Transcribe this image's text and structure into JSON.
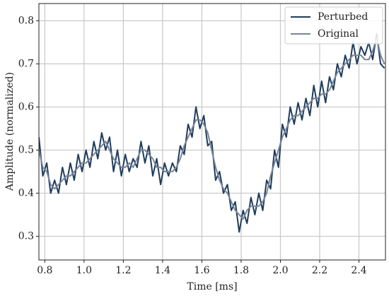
{
  "chart_data": {
    "type": "line",
    "xlabel": "Time [ms]",
    "ylabel": "Amplitude (normalized)",
    "x": [
      0.77,
      0.79,
      0.81,
      0.83,
      0.85,
      0.87,
      0.89,
      0.91,
      0.93,
      0.95,
      0.97,
      0.99,
      1.01,
      1.03,
      1.05,
      1.07,
      1.09,
      1.11,
      1.13,
      1.15,
      1.17,
      1.19,
      1.21,
      1.23,
      1.25,
      1.27,
      1.29,
      1.31,
      1.33,
      1.35,
      1.37,
      1.39,
      1.41,
      1.43,
      1.45,
      1.47,
      1.49,
      1.51,
      1.53,
      1.55,
      1.57,
      1.59,
      1.61,
      1.63,
      1.65,
      1.67,
      1.69,
      1.71,
      1.73,
      1.75,
      1.77,
      1.79,
      1.81,
      1.83,
      1.85,
      1.87,
      1.89,
      1.91,
      1.93,
      1.95,
      1.97,
      1.99,
      2.01,
      2.03,
      2.05,
      2.07,
      2.09,
      2.11,
      2.13,
      2.15,
      2.17,
      2.19,
      2.21,
      2.23,
      2.25,
      2.27,
      2.29,
      2.31,
      2.33,
      2.35,
      2.37,
      2.39,
      2.41,
      2.43,
      2.45,
      2.47,
      2.49,
      2.51,
      2.53
    ],
    "series": [
      {
        "name": "Perturbed",
        "color": "#1f3d5c",
        "width": 2,
        "values": [
          0.53,
          0.44,
          0.47,
          0.4,
          0.43,
          0.4,
          0.46,
          0.42,
          0.47,
          0.43,
          0.49,
          0.45,
          0.5,
          0.46,
          0.52,
          0.48,
          0.54,
          0.5,
          0.53,
          0.45,
          0.5,
          0.44,
          0.49,
          0.45,
          0.48,
          0.46,
          0.52,
          0.47,
          0.51,
          0.44,
          0.48,
          0.42,
          0.47,
          0.44,
          0.47,
          0.45,
          0.51,
          0.49,
          0.56,
          0.53,
          0.6,
          0.55,
          0.58,
          0.51,
          0.52,
          0.43,
          0.45,
          0.4,
          0.42,
          0.36,
          0.38,
          0.31,
          0.36,
          0.33,
          0.39,
          0.35,
          0.4,
          0.36,
          0.43,
          0.41,
          0.5,
          0.46,
          0.56,
          0.53,
          0.6,
          0.56,
          0.61,
          0.57,
          0.62,
          0.58,
          0.65,
          0.6,
          0.66,
          0.61,
          0.67,
          0.64,
          0.7,
          0.67,
          0.72,
          0.69,
          0.75,
          0.7,
          0.74,
          0.72,
          0.75,
          0.71,
          0.77,
          0.7,
          0.69
        ]
      },
      {
        "name": "Original",
        "color": "#7a8499",
        "width": 2,
        "values": [
          0.5,
          0.46,
          0.45,
          0.42,
          0.41,
          0.42,
          0.43,
          0.44,
          0.44,
          0.45,
          0.46,
          0.47,
          0.47,
          0.48,
          0.49,
          0.5,
          0.51,
          0.52,
          0.5,
          0.48,
          0.47,
          0.46,
          0.46,
          0.47,
          0.46,
          0.48,
          0.5,
          0.5,
          0.49,
          0.48,
          0.46,
          0.46,
          0.45,
          0.45,
          0.45,
          0.46,
          0.48,
          0.51,
          0.53,
          0.55,
          0.57,
          0.57,
          0.56,
          0.54,
          0.5,
          0.46,
          0.43,
          0.41,
          0.4,
          0.38,
          0.36,
          0.35,
          0.34,
          0.36,
          0.37,
          0.37,
          0.37,
          0.38,
          0.4,
          0.44,
          0.47,
          0.5,
          0.53,
          0.55,
          0.57,
          0.58,
          0.58,
          0.59,
          0.6,
          0.61,
          0.62,
          0.62,
          0.63,
          0.63,
          0.64,
          0.66,
          0.68,
          0.69,
          0.7,
          0.71,
          0.72,
          0.72,
          0.72,
          0.71,
          0.71,
          0.73,
          0.76,
          0.72,
          0.7
        ]
      }
    ],
    "xlim": [
      0.77,
      2.535
    ],
    "ylim": [
      0.245,
      0.84
    ],
    "xticks": [
      0.8,
      {
        "value": 1,
        "label": "1.0"
      },
      1.2,
      1.4,
      1.6,
      1.8,
      {
        "value": 2,
        "label": "2.0"
      },
      2.2,
      2.4
    ],
    "yticks": [
      0.3,
      0.4,
      0.5,
      0.6,
      0.7,
      0.8
    ],
    "grid": true,
    "legend": "upper right"
  }
}
